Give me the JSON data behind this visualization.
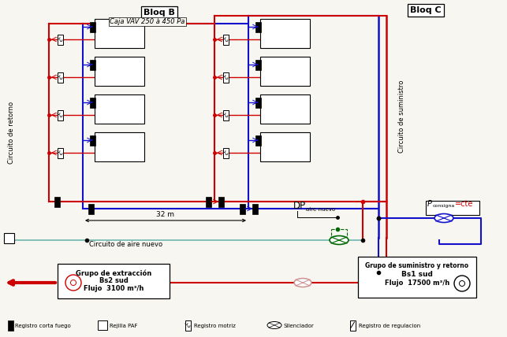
{
  "bg_color": "#f8f6f0",
  "bloq_b_label": "Bloq B",
  "bloq_c_label": "Bloq C",
  "vav_label": "Caja VAV 250 à 450 Pa",
  "circuito_retorno": "Circuito de retorno",
  "circuito_suministro": "Circuito de suministro",
  "circuito_aire_nuevo": "Circuito de aire nuevo",
  "grupo_extraccion_l1": "Grupo de extracción",
  "grupo_extraccion_l2": "Bs2 sud",
  "grupo_extraccion_l3": "Flujo  3100 m³/h",
  "grupo_suministro_l1": "Grupo de suministro y retorno",
  "grupo_suministro_l2": "Bs1 sud",
  "grupo_suministro_l3": "Flujo  17500 m³/h",
  "dp_label": "DP",
  "dp_sub": "aire nuevo",
  "p_consigna": "P",
  "p_consigna_sub": "consigna",
  "p_consigna_val": "=cte",
  "dim_32m": "32 m",
  "legend": [
    "Registro corta fuego",
    "Rejilla PAF",
    "Registro motriz",
    "Silenciador",
    "Registro de regulacion"
  ],
  "red": "#cc0000",
  "blue": "#1111cc",
  "green": "#006600",
  "teal": "#80c0b8",
  "black": "#000000",
  "gray": "#888888"
}
